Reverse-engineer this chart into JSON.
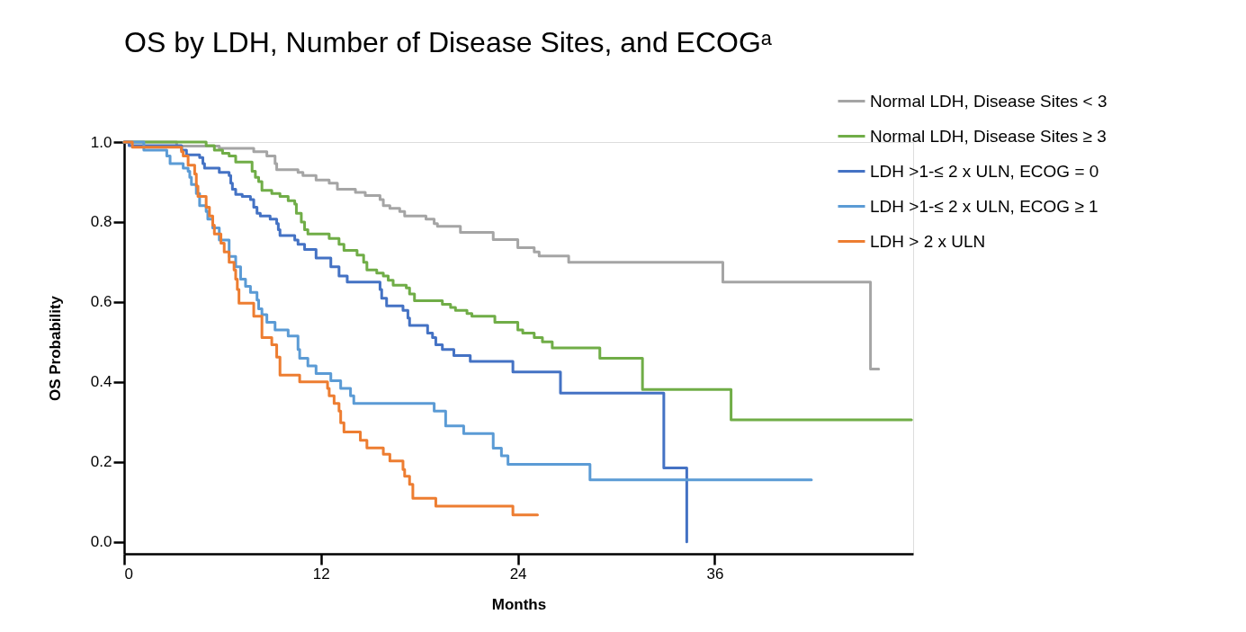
{
  "chart_data": {
    "type": "step",
    "title": "OS by LDH, Number of Disease Sites, and ECOGᵃ",
    "xlabel": "Months",
    "ylabel": "OS Probability",
    "xlim": [
      0,
      48.1
    ],
    "ylim": [
      -0.03,
      1.0
    ],
    "xticks": [
      0,
      12,
      24,
      36
    ],
    "yticks": [
      {
        "value": 0,
        "label": "0.0"
      },
      {
        "value": 0.2,
        "label": "0.2"
      },
      {
        "value": 0.4,
        "label": "0.4"
      },
      {
        "value": 0.6,
        "label": "0.6"
      },
      {
        "value": 0.8,
        "label": "0.8"
      },
      {
        "value": 1.0,
        "label": "1.0"
      }
    ],
    "legend": "top right",
    "series": [
      {
        "name": "Normal LDH, Disease Sites < 3",
        "color": "#a5a5a5",
        "x": [
          0,
          3.2,
          5.8,
          7.9,
          8.7,
          9.2,
          9.3,
          10.6,
          10.9,
          11.7,
          12.5,
          13.0,
          14.1,
          14.7,
          15.6,
          15.8,
          16.2,
          16.8,
          17.1,
          18.4,
          18.9,
          19.1,
          20.5,
          22.5,
          24.0,
          25.0,
          25.3,
          27.1,
          36.5,
          45.5,
          46.0
        ],
        "values": [
          1.0,
          0.99,
          0.984,
          0.976,
          0.965,
          0.946,
          0.931,
          0.924,
          0.916,
          0.905,
          0.897,
          0.882,
          0.874,
          0.866,
          0.856,
          0.841,
          0.834,
          0.826,
          0.815,
          0.807,
          0.796,
          0.789,
          0.774,
          0.756,
          0.736,
          0.725,
          0.715,
          0.699,
          0.65,
          0.432,
          0.432
        ]
      },
      {
        "name": "Normal LDH, Disease Sites ≥ 3",
        "color": "#70ad47",
        "x": [
          0,
          5.0,
          5.5,
          6.0,
          6.4,
          6.8,
          7.8,
          8.0,
          8.2,
          8.4,
          9.0,
          9.5,
          10.0,
          10.4,
          10.5,
          10.8,
          11.0,
          11.2,
          12.5,
          13.1,
          13.4,
          14.2,
          14.6,
          14.8,
          15.4,
          15.8,
          16.1,
          16.4,
          17.2,
          17.4,
          17.7,
          19.4,
          19.9,
          20.2,
          20.9,
          21.2,
          22.6,
          24.0,
          24.3,
          25.0,
          25.5,
          26.1,
          29.0,
          31.6,
          37.0,
          48.0
        ],
        "values": [
          1.0,
          0.991,
          0.98,
          0.972,
          0.965,
          0.95,
          0.927,
          0.912,
          0.901,
          0.879,
          0.871,
          0.864,
          0.853,
          0.845,
          0.822,
          0.8,
          0.781,
          0.77,
          0.759,
          0.744,
          0.729,
          0.717,
          0.699,
          0.68,
          0.672,
          0.665,
          0.654,
          0.642,
          0.635,
          0.62,
          0.603,
          0.594,
          0.586,
          0.579,
          0.571,
          0.564,
          0.549,
          0.53,
          0.522,
          0.511,
          0.5,
          0.485,
          0.459,
          0.381,
          0.305,
          0.305
        ]
      },
      {
        "name": "LDH >1-≤ 2 x ULN, ECOG = 0",
        "color": "#4472c4",
        "x": [
          0,
          0.3,
          3.5,
          3.8,
          4.6,
          4.8,
          4.9,
          5.8,
          6.4,
          6.5,
          6.6,
          6.8,
          7.2,
          7.7,
          7.9,
          8.1,
          8.3,
          8.9,
          9.3,
          9.4,
          9.5,
          10.4,
          10.6,
          11.0,
          11.7,
          12.6,
          13.1,
          13.6,
          15.6,
          15.7,
          16.0,
          17.0,
          17.3,
          17.4,
          18.5,
          18.8,
          19.0,
          19.4,
          20.1,
          21.1,
          23.7,
          26.6,
          32.9,
          34.3
        ],
        "values": [
          1.0,
          0.991,
          0.98,
          0.968,
          0.961,
          0.946,
          0.935,
          0.924,
          0.916,
          0.897,
          0.882,
          0.869,
          0.864,
          0.856,
          0.837,
          0.822,
          0.815,
          0.807,
          0.796,
          0.781,
          0.766,
          0.755,
          0.744,
          0.731,
          0.71,
          0.688,
          0.665,
          0.65,
          0.631,
          0.609,
          0.59,
          0.579,
          0.56,
          0.541,
          0.522,
          0.511,
          0.493,
          0.481,
          0.466,
          0.451,
          0.425,
          0.372,
          0.185,
          0.0
        ]
      },
      {
        "name": "LDH >1-≤ 2 x ULN, ECOG ≥ 1",
        "color": "#5b9bd5",
        "x": [
          0,
          1.2,
          2.6,
          2.8,
          3.6,
          3.9,
          4.0,
          4.1,
          4.4,
          4.6,
          5.0,
          5.1,
          5.4,
          5.8,
          6.4,
          6.8,
          7.1,
          7.4,
          7.7,
          8.1,
          8.2,
          8.4,
          8.7,
          9.2,
          10.0,
          10.6,
          10.7,
          11.2,
          11.7,
          12.6,
          13.2,
          13.8,
          14.0,
          18.9,
          19.6,
          20.7,
          22.5,
          23.0,
          23.4,
          28.4,
          41.9
        ],
        "values": [
          1.0,
          0.98,
          0.965,
          0.946,
          0.935,
          0.927,
          0.912,
          0.894,
          0.871,
          0.841,
          0.826,
          0.807,
          0.785,
          0.755,
          0.714,
          0.688,
          0.657,
          0.639,
          0.624,
          0.605,
          0.583,
          0.568,
          0.549,
          0.53,
          0.515,
          0.481,
          0.459,
          0.44,
          0.421,
          0.403,
          0.384,
          0.365,
          0.346,
          0.327,
          0.29,
          0.271,
          0.234,
          0.215,
          0.194,
          0.155,
          0.155
        ]
      },
      {
        "name": "LDH > 2 x ULN",
        "color": "#ed7d31",
        "x": [
          0,
          0.5,
          3.5,
          3.6,
          3.9,
          4.3,
          4.4,
          4.5,
          5.0,
          5.2,
          5.4,
          5.5,
          5.9,
          6.1,
          6.4,
          6.7,
          6.8,
          6.9,
          7.0,
          7.9,
          8.4,
          9.0,
          9.3,
          9.5,
          10.7,
          12.4,
          12.5,
          12.8,
          13.1,
          13.2,
          13.4,
          14.4,
          14.8,
          15.8,
          16.2,
          17.0,
          17.1,
          17.4,
          17.6,
          19.0,
          23.7,
          25.2
        ],
        "values": [
          1.0,
          0.987,
          0.976,
          0.965,
          0.942,
          0.92,
          0.89,
          0.864,
          0.837,
          0.815,
          0.792,
          0.77,
          0.747,
          0.725,
          0.699,
          0.68,
          0.657,
          0.631,
          0.597,
          0.564,
          0.511,
          0.493,
          0.462,
          0.417,
          0.4,
          0.384,
          0.365,
          0.346,
          0.327,
          0.298,
          0.275,
          0.254,
          0.235,
          0.219,
          0.202,
          0.181,
          0.164,
          0.144,
          0.109,
          0.089,
          0.067,
          0.067
        ]
      }
    ]
  }
}
